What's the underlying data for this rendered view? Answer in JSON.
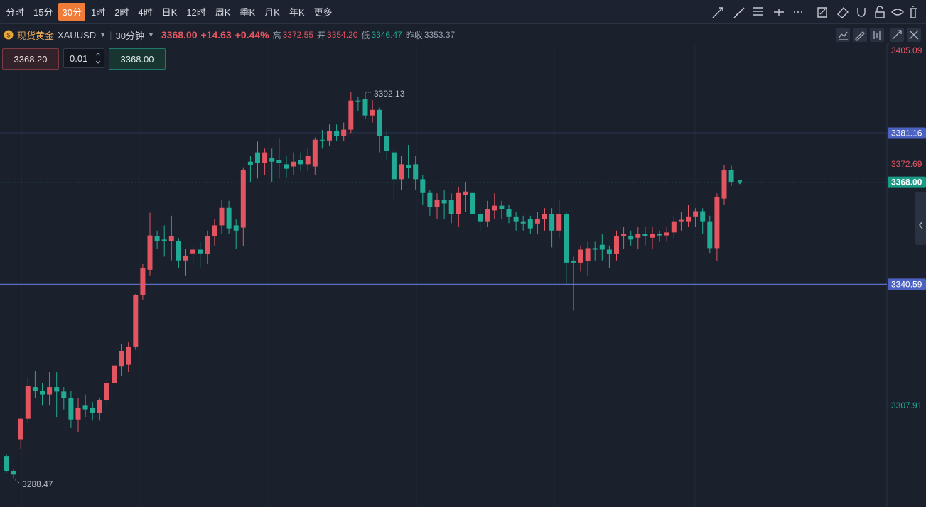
{
  "toolbar": {
    "intervals": [
      "分时",
      "15分",
      "30分",
      "1时",
      "2时",
      "4时",
      "日K",
      "12时",
      "周K",
      "季K",
      "月K",
      "年K",
      "更多"
    ],
    "active": 2
  },
  "header": {
    "symbol_name": "现货黄金",
    "symbol": "XAUUSD",
    "interval": "30分钟",
    "price": "3368.00",
    "change": "+14.63",
    "change_pct": "+0.44%",
    "high_label": "高",
    "high": "3372.55",
    "open_label": "开",
    "open": "3354.20",
    "low_label": "低",
    "low": "3346.47",
    "prev_close_label": "昨收",
    "prev_close": "3353.37"
  },
  "order": {
    "sell": "3368.20",
    "quantity": "0.01",
    "buy": "3368.00"
  },
  "chart_data": {
    "type": "candlestick",
    "up_color": "#e35561",
    "down_color": "#22ab94",
    "ylim": [
      3280.8,
      3405.09
    ],
    "yticks": [
      3405.09,
      3372.69,
      3307.91
    ],
    "hlines": [
      3381.16,
      3340.59
    ],
    "last_price": {
      "value": 3368,
      "label": "3368.00"
    },
    "high_annotation": 3392.13,
    "low_annotation": 3288.47,
    "open": [
      3294.5,
      3290.5,
      3299,
      3304.5,
      3313,
      3312,
      3311,
      3313,
      3311.8,
      3310,
      3304.3,
      3308,
      3307.5,
      3306,
      3309.4,
      3314,
      3318.5,
      3319,
      3323.9,
      3337.8,
      3344.5,
      3353.5,
      3352.6,
      3352.2,
      3352.2,
      3347,
      3348.9,
      3349.9,
      3348.7,
      3353.5,
      3356.4,
      3361.1,
      3356.4,
      3355.8,
      3373.5,
      3376,
      3373.1,
      3374.5,
      3374,
      3372.8,
      3372.2,
      3374,
      3372.8,
      3372.2,
      3379.4,
      3379.2,
      3381.7,
      3380.4,
      3382.1,
      3389.9,
      3390.3,
      3385.9,
      3387.4,
      3380.4,
      3376,
      3368.8,
      3372.6,
      3372.8,
      3368.8,
      3365.1,
      3361.3,
      3363.2,
      3363.2,
      3359.4,
      3364.6,
      3365.1,
      3359.4,
      3357.5,
      3360.4,
      3361.7,
      3360.7,
      3358.8,
      3357.5,
      3358,
      3356.9,
      3358,
      3359.4,
      3355,
      3359.4,
      3346.8,
      3346.4,
      3346.8,
      3350.3,
      3351.2,
      3349.9,
      3348.7,
      3353.5,
      3353.5,
      3353.1,
      3354.1,
      3353.1,
      3354.1,
      3353.7,
      3354.5,
      3357.5,
      3357.5,
      3358.8,
      3360.2,
      3357.5,
      3350.3,
      3363.6,
      3371.2
    ],
    "high": [
      3295,
      3291,
      3304.8,
      3315.3,
      3317.4,
      3314,
      3317,
      3317,
      3313,
      3312,
      3310,
      3311,
      3309,
      3310,
      3315,
      3320.5,
      3324.5,
      3325,
      3338,
      3346,
      3359.8,
      3355,
      3356.4,
      3359,
      3353,
      3350,
      3351,
      3352,
      3355,
      3358,
      3363.2,
      3363,
      3358,
      3372,
      3375,
      3378.9,
      3377,
      3377,
      3379.8,
      3375,
      3376,
      3376,
      3377,
      3380,
      3382,
      3383.5,
      3383.5,
      3384,
      3392.1,
      3391,
      3392.13,
      3390,
      3388,
      3382,
      3377,
      3375,
      3378,
      3375,
      3370,
      3366,
      3365,
      3366,
      3365,
      3366.8,
      3368,
      3366,
      3361,
      3363,
      3365,
      3363,
      3362,
      3360,
      3359,
      3359,
      3360,
      3361,
      3361,
      3363.2,
      3360,
      3348,
      3351,
      3352,
      3352,
      3354,
      3351,
      3355,
      3356,
      3355,
      3356,
      3356,
      3356,
      3355,
      3356,
      3359,
      3360,
      3362,
      3361,
      3361,
      3359,
      3365,
      3372.69,
      3372.4
    ],
    "low": [
      3290,
      3288.47,
      3296.4,
      3303.5,
      3310,
      3308,
      3308,
      3305,
      3307,
      3302,
      3301,
      3305,
      3304,
      3304,
      3308,
      3312,
      3316,
      3317,
      3323,
      3336.5,
      3343,
      3350,
      3348,
      3347,
      3345,
      3343,
      3346,
      3345,
      3346,
      3351,
      3354,
      3354,
      3350,
      3350.8,
      3368,
      3369,
      3370,
      3368,
      3369,
      3369.3,
      3370,
      3371,
      3371,
      3370,
      3377,
      3377.8,
      3379,
      3379,
      3381,
      3387,
      3385,
      3384,
      3376,
      3374,
      3363.2,
      3366,
      3369,
      3366,
      3362,
      3359,
      3358,
      3358,
      3357,
      3356,
      3360,
      3352.2,
      3355,
      3356,
      3358,
      3358,
      3357,
      3355,
      3355,
      3354,
      3354,
      3355,
      3350.5,
      3353,
      3340.7,
      3333.5,
      3344,
      3343,
      3347,
      3347,
      3344.9,
      3347,
      3350,
      3351,
      3350,
      3351,
      3350,
      3352,
      3352,
      3353,
      3355,
      3356,
      3356,
      3354,
      3349,
      3346.8,
      3362,
      3367
    ],
    "close": [
      3290.5,
      3289.5,
      3304.5,
      3313.4,
      3312,
      3311,
      3313,
      3311.8,
      3310,
      3304.3,
      3307.5,
      3307,
      3306,
      3309.4,
      3314,
      3318.8,
      3322.6,
      3323.9,
      3337.8,
      3344.9,
      3353.7,
      3352.2,
      3352.2,
      3353.5,
      3347,
      3348.3,
      3349.9,
      3348.9,
      3353.5,
      3356.4,
      3361.1,
      3355.6,
      3355,
      3371.2,
      3372.6,
      3373.1,
      3376,
      3373.5,
      3373.1,
      3371.6,
      3373.5,
      3372.8,
      3375,
      3379.4,
      3379.2,
      3381.7,
      3380.4,
      3382.1,
      3389.9,
      3389.7,
      3385.9,
      3387.4,
      3380.4,
      3376.4,
      3368.8,
      3372.8,
      3371.8,
      3368.8,
      3365.1,
      3361.3,
      3363.2,
      3362.3,
      3359.4,
      3365.1,
      3365.5,
      3359.4,
      3357.5,
      3360.7,
      3361.7,
      3360.7,
      3358.8,
      3357.5,
      3356.9,
      3355.6,
      3358,
      3359.4,
      3355,
      3359.4,
      3346.4,
      3346.4,
      3349.9,
      3350.3,
      3349.9,
      3349.9,
      3348.7,
      3353.5,
      3354.1,
      3352.6,
      3354.1,
      3353.5,
      3354.1,
      3353.7,
      3354.5,
      3357.5,
      3357.9,
      3358.8,
      3360.2,
      3357.5,
      3350.3,
      3364,
      3371.2,
      3368
    ]
  }
}
